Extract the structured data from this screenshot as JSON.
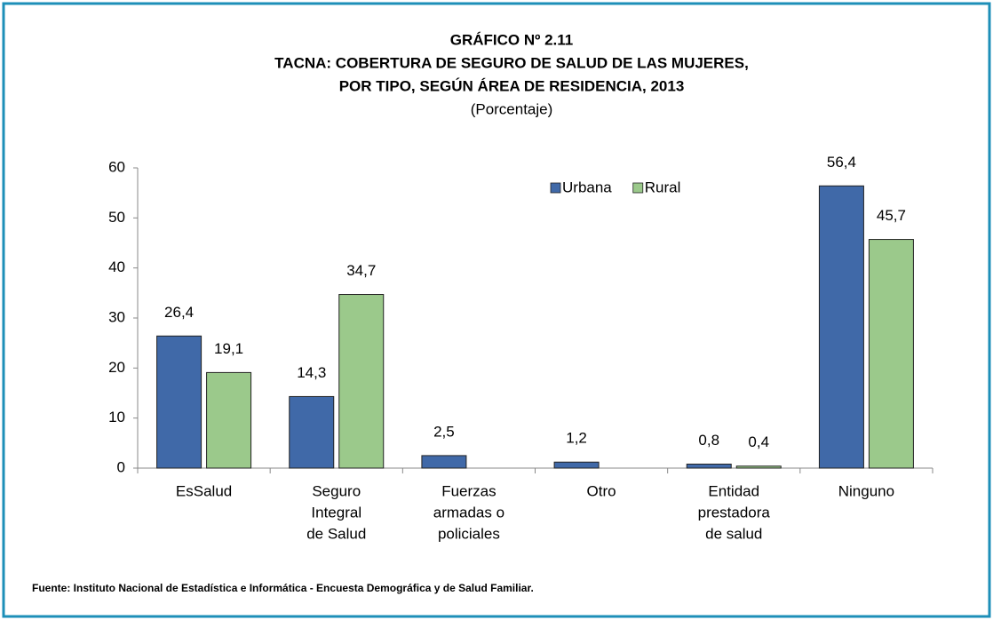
{
  "chart_data": {
    "type": "bar",
    "title": [
      "GRÁFICO Nº 2.11",
      "TACNA: COBERTURA DE SEGURO DE SALUD DE LAS MUJERES,",
      "POR TIPO, SEGÚN ÁREA DE RESIDENCIA, 2013"
    ],
    "subtitle": "(Porcentaje)",
    "categories": [
      [
        "EsSalud"
      ],
      [
        "Seguro",
        "Integral",
        "de Salud"
      ],
      [
        "Fuerzas",
        "armadas o",
        "policiales"
      ],
      [
        "Otro"
      ],
      [
        "Entidad",
        "prestadora",
        "de salud"
      ],
      [
        "Ninguno"
      ]
    ],
    "series": [
      {
        "name": "Urbana",
        "color": "#4069a8",
        "values": [
          26.4,
          14.3,
          2.5,
          1.2,
          0.8,
          56.4
        ],
        "value_labels": [
          "26,4",
          "14,3",
          "2,5",
          "1,2",
          "0,8",
          "56,4"
        ]
      },
      {
        "name": "Rural",
        "color": "#9bc98b",
        "values": [
          19.1,
          34.7,
          null,
          null,
          0.4,
          45.7
        ],
        "value_labels": [
          "19,1",
          "34,7",
          null,
          null,
          "0,4",
          "45,7"
        ]
      }
    ],
    "ylim": [
      0,
      60
    ],
    "yticks": [
      0,
      10,
      20,
      30,
      40,
      50,
      60
    ],
    "grid": false,
    "legend": "top",
    "source": "Fuente: Instituto Nacional de Estadística e Informática - Encuesta Demográfica y de Salud Familiar."
  }
}
